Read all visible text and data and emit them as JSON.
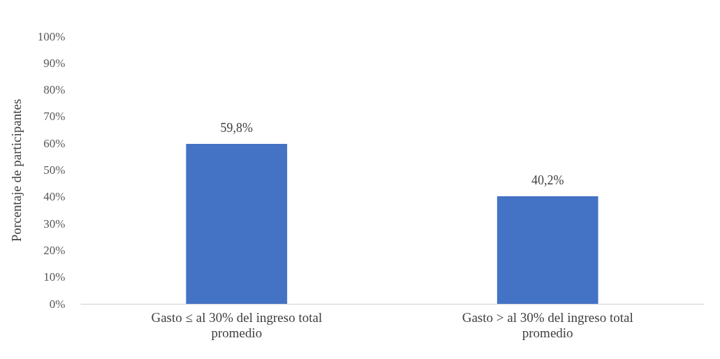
{
  "chart_data": {
    "type": "bar",
    "ylabel": "Porcentaje de  participantes",
    "categories": [
      "Gasto ≤ al 30% del ingreso total promedio",
      "Gasto > al 30% del ingreso total promedio"
    ],
    "values": [
      59.8,
      40.2
    ],
    "color": "#4472c4",
    "value_labels": [
      "59,8%",
      "40,2%"
    ],
    "ylim": [
      0,
      100
    ],
    "yticks": [
      {
        "value": 0,
        "label": "0%"
      },
      {
        "value": 10,
        "label": "10%"
      },
      {
        "value": 20,
        "label": "20%"
      },
      {
        "value": 30,
        "label": "30%"
      },
      {
        "value": 40,
        "label": "40%"
      },
      {
        "value": 50,
        "label": "50%"
      },
      {
        "value": 60,
        "label": "60%"
      },
      {
        "value": 70,
        "label": "70%"
      },
      {
        "value": 80,
        "label": "80%"
      },
      {
        "value": 90,
        "label": "90%"
      },
      {
        "value": 100,
        "label": "100%"
      }
    ],
    "grid": false
  }
}
